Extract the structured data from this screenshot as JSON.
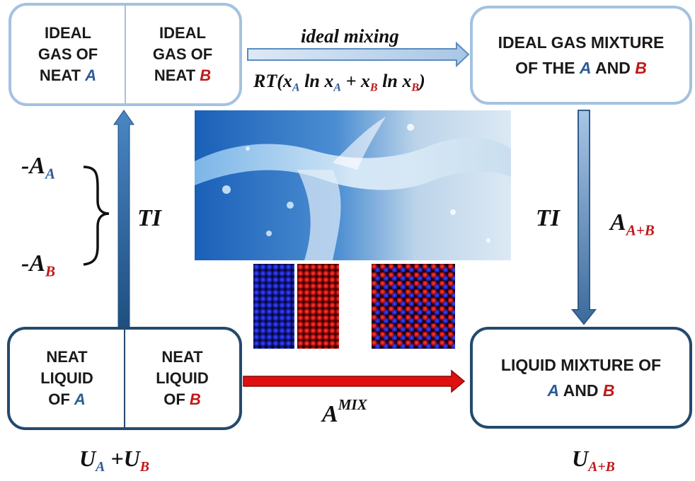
{
  "top_left_box": {
    "left_lines": [
      "IDEAL",
      "GAS OF",
      "NEAT"
    ],
    "left_species": "A",
    "right_lines": [
      "IDEAL",
      "GAS OF",
      "NEAT"
    ],
    "right_species": "B"
  },
  "top_right_box": {
    "line1": "IDEAL GAS MIXTURE",
    "line2_prefix": "OF THE",
    "species_a": "A",
    "connector": "AND",
    "species_b": "B"
  },
  "bottom_left_box": {
    "left_lines": [
      "NEAT",
      "LIQUID",
      "OF"
    ],
    "left_species": "A",
    "right_lines": [
      "NEAT",
      "LIQUID",
      "OF"
    ],
    "right_species": "B"
  },
  "bottom_right_box": {
    "line1": "LIQUID MIXTURE OF",
    "species_a": "A",
    "connector": "AND",
    "species_b": "B"
  },
  "ideal_mixing_label": "ideal mixing",
  "ideal_mixing_formula": {
    "prefix": "RT(x",
    "sub1": "A",
    "mid1": " ln x",
    "sub2": "A",
    "mid2": " + x",
    "sub3": "B",
    "mid3": " ln x",
    "sub4": "B",
    "suffix": ")"
  },
  "left_ti": "TI",
  "right_ti": "TI",
  "neg_a": {
    "base": "-A",
    "sub": "A"
  },
  "neg_b": {
    "base": "-A",
    "sub": "B"
  },
  "a_a_plus_b": {
    "base": "A",
    "sub": "A+B"
  },
  "a_mix": {
    "base": "A",
    "sup": "MIX"
  },
  "u_a_plus_u_b": {
    "base1": "U",
    "sub1": "A",
    "plus": " +",
    "base2": "U",
    "sub2": "B"
  },
  "u_a_plus_b": {
    "base": "U",
    "sub": "A+B"
  },
  "colors": {
    "species_a": "#2e5b95",
    "species_b": "#c01818",
    "light_border": "#a4c2e0",
    "dark_border": "#244a6c",
    "arrow_red": "#e01010"
  }
}
